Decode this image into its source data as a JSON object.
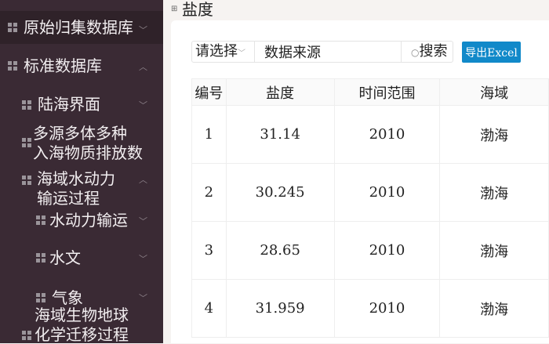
{
  "sidebar": {
    "items": [
      {
        "label": "原始归集数据库",
        "expanded": false
      },
      {
        "label": "标准数据库",
        "expanded": true
      },
      {
        "label": "陆海界面",
        "expanded": false
      },
      {
        "label_line1": "多源多体多种",
        "label_line2": "入海物质排放数"
      },
      {
        "label_line1": "海域水动力",
        "label_line2": "输运过程",
        "expanded": true
      },
      {
        "label": "水动力输运",
        "expanded": false
      },
      {
        "label": "水文",
        "expanded": false
      },
      {
        "label": "气象",
        "expanded": false
      },
      {
        "label_line1": "海域生物地球",
        "label_line2": "化学迁移过程"
      }
    ]
  },
  "page": {
    "title": "盐度"
  },
  "toolbar": {
    "select_label": "请选择",
    "input_value": "数据来源",
    "search_label": "搜索",
    "export_label": "导出Excel"
  },
  "table": {
    "headers": [
      "编号",
      "盐度",
      "时间范围",
      "海域"
    ],
    "rows": [
      [
        "1",
        "31.14",
        "2010",
        "渤海"
      ],
      [
        "2",
        "30.245",
        "2010",
        "渤海"
      ],
      [
        "3",
        "28.65",
        "2010",
        "渤海"
      ],
      [
        "4",
        "31.959",
        "2010",
        "渤海"
      ]
    ]
  },
  "colors": {
    "sidebar": "#3a2a34",
    "accent": "#1189c9"
  }
}
